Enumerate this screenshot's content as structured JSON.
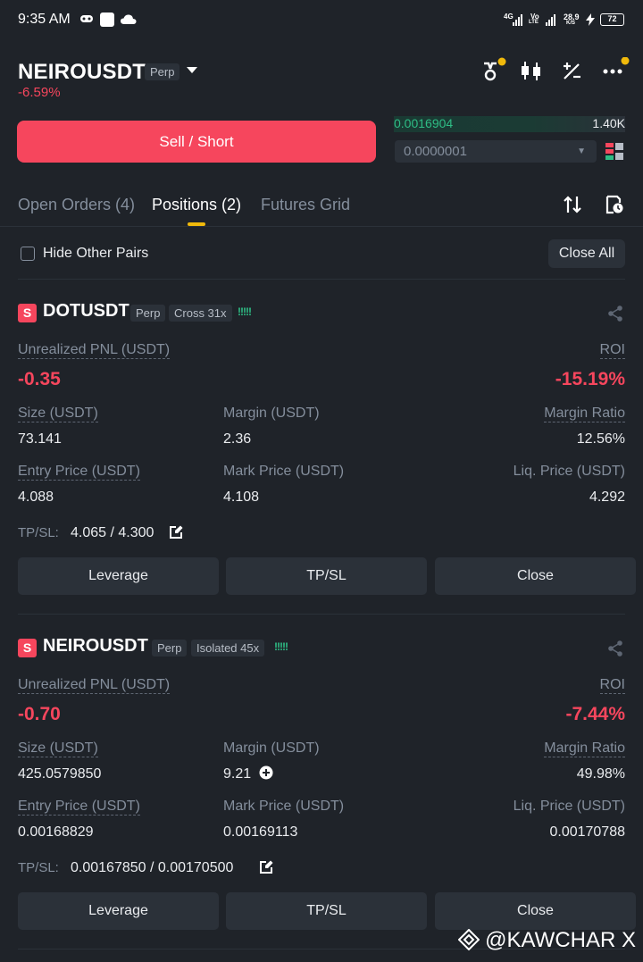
{
  "status_bar": {
    "time": "9:35 AM",
    "net1_top": "4G",
    "net2_top": "Vo",
    "net2_bottom": "LTE",
    "speed_top": "28.9",
    "speed_bottom": "K/S",
    "battery": "72"
  },
  "header": {
    "symbol": "NEIROUSDT",
    "contract_type": "Perp",
    "change": "-6.59%",
    "icons": [
      "recycle-icon",
      "candlestick-icon",
      "percent-icon",
      "more-icon"
    ]
  },
  "trade": {
    "sell_label": "Sell / Short",
    "orderbook_price": "0.0016904",
    "orderbook_volume": "1.40K",
    "precision": "0.0000001"
  },
  "tabs": [
    {
      "label": "Open Orders (4)",
      "active": false
    },
    {
      "label": "Positions (2)",
      "active": true
    },
    {
      "label": "Futures Grid",
      "active": false
    }
  ],
  "filter": {
    "hide_other_pairs_label": "Hide Other Pairs",
    "close_all_label": "Close All"
  },
  "labels": {
    "side": "S",
    "unrealized_pnl": "Unrealized PNL (USDT)",
    "roi": "ROI",
    "size": "Size (USDT)",
    "margin": "Margin (USDT)",
    "margin_ratio": "Margin Ratio",
    "entry_price": "Entry Price (USDT)",
    "mark_price": "Mark Price (USDT)",
    "liq_price": "Liq. Price (USDT)",
    "tpsl": "TP/SL:",
    "leverage_btn": "Leverage",
    "tpsl_btn": "TP/SL",
    "close_btn": "Close"
  },
  "positions": [
    {
      "symbol": "DOTUSDT",
      "type": "Perp",
      "margin_mode": "Cross 31x",
      "leverage_bars": "!!!!!",
      "pnl": "-0.35",
      "roi": "-15.19%",
      "size": "73.141",
      "margin": "2.36",
      "margin_ratio": "12.56%",
      "entry_price": "4.088",
      "mark_price": "4.108",
      "liq_price": "4.292",
      "tpsl": "4.065 / 4.300"
    },
    {
      "symbol": "NEIROUSDT",
      "type": "Perp",
      "margin_mode": "Isolated 45x",
      "leverage_bars": "!!!!!",
      "pnl": "-0.70",
      "roi": "-7.44%",
      "size": "425.0579850",
      "margin": "9.21",
      "margin_ratio": "49.98%",
      "entry_price": "0.00168829",
      "mark_price": "0.00169113",
      "liq_price": "0.00170788",
      "tpsl": "0.00167850 / 0.00170500"
    }
  ],
  "watermark": "@KAWCHAR X",
  "colors": {
    "background": "#1f2329",
    "sell_red": "#f6465d",
    "buy_green": "#2ebd85",
    "accent_yellow": "#f0b90b",
    "muted_text": "#848e9c",
    "panel": "#2b3139"
  }
}
